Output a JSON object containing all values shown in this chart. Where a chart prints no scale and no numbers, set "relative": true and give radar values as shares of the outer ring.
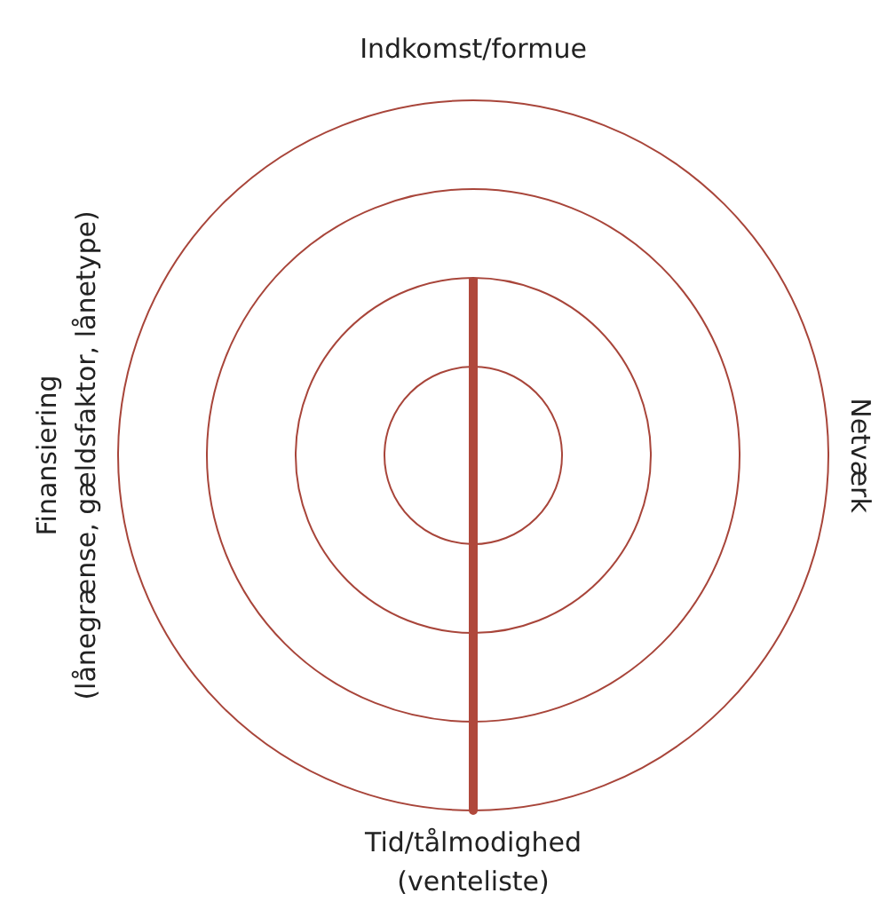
{
  "chart_data": {
    "type": "radar",
    "relative": true,
    "grid": true,
    "categories": [
      "Indkomst/formue",
      "Netværk",
      "Tid/tålmodighed\n(venteliste)",
      "Finansiering\n(lånegrænse, gældsfaktor, lånetype)"
    ],
    "series": [
      {
        "color": "#b0483b",
        "values": [
          0.5,
          0,
          1,
          0
        ]
      }
    ]
  }
}
